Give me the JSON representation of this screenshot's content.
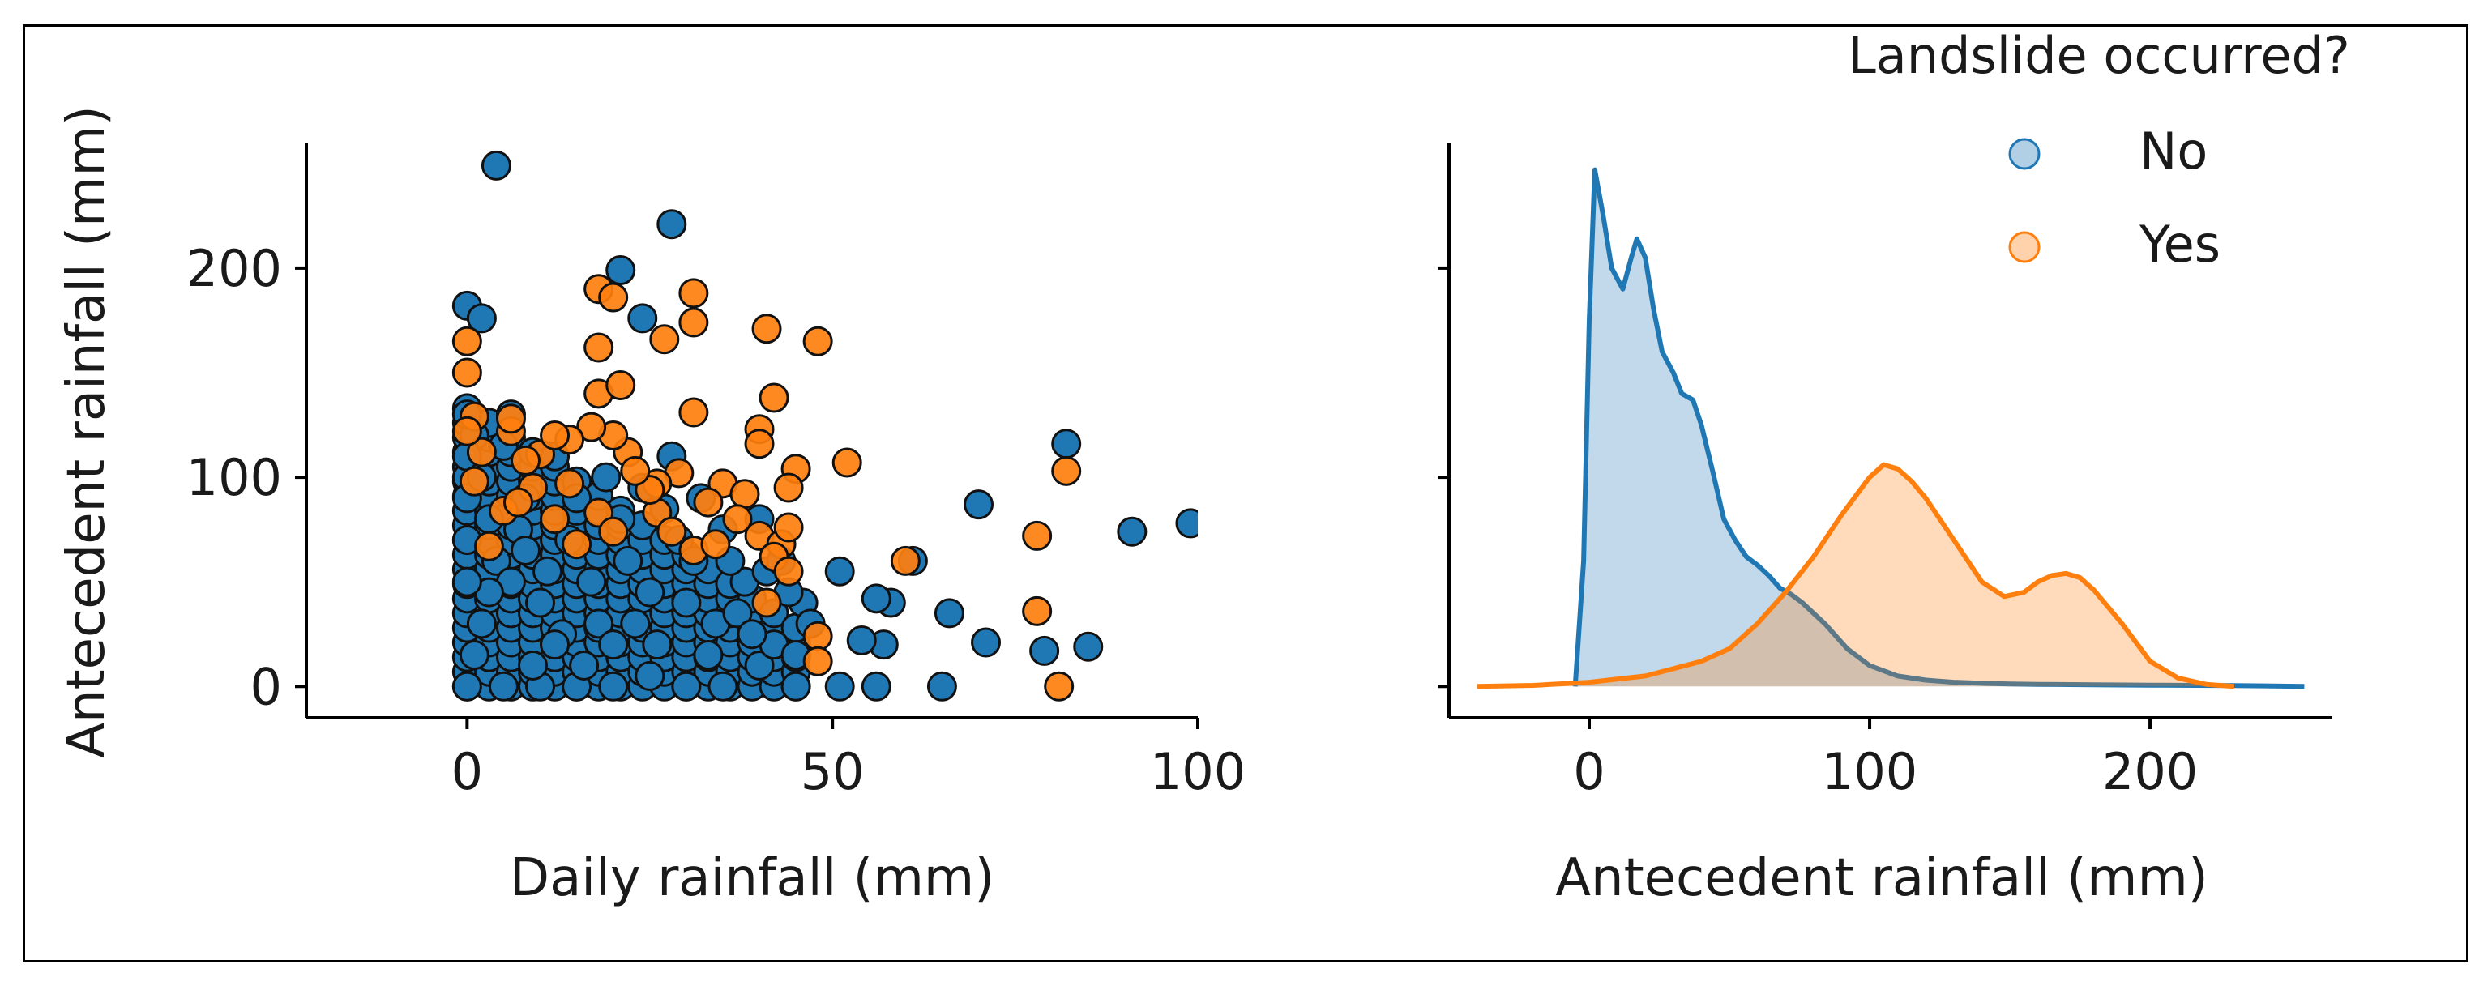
{
  "chart_data": [
    {
      "type": "scatter",
      "xlabel": "Daily rainfall (mm)",
      "ylabel": "Antecedent rainfall (mm)",
      "xlim": [
        -22,
        100
      ],
      "ylim": [
        -15,
        260
      ],
      "xticks": [
        "0",
        "50",
        "100"
      ],
      "xtick_values": [
        0,
        50,
        100
      ],
      "yticks": [
        "0",
        "100",
        "200"
      ],
      "ytick_values": [
        0,
        100,
        200
      ],
      "series": [
        {
          "name": "No",
          "color": "#1f77b4",
          "points": [
            [
              4,
              249
            ],
            [
              28,
              221
            ],
            [
              0,
              182
            ],
            [
              2,
              176
            ],
            [
              21,
              199
            ],
            [
              24,
              176
            ],
            [
              82,
              116
            ],
            [
              70,
              87
            ],
            [
              91,
              74
            ],
            [
              99,
              78
            ],
            [
              66,
              35
            ],
            [
              71,
              21
            ],
            [
              65,
              0
            ],
            [
              79,
              17
            ],
            [
              85,
              19
            ],
            [
              58,
              40
            ],
            [
              56,
              42
            ],
            [
              61,
              60
            ],
            [
              51,
              55
            ],
            [
              57,
              20
            ],
            [
              54,
              22
            ],
            [
              56,
              0
            ],
            [
              51,
              0
            ],
            [
              45,
              0
            ],
            [
              40,
              10
            ],
            [
              35,
              0
            ],
            [
              30,
              0
            ],
            [
              25,
              5
            ],
            [
              20,
              0
            ],
            [
              15,
              0
            ],
            [
              10,
              0
            ],
            [
              5,
              0
            ],
            [
              0,
              0
            ],
            [
              2,
              30
            ],
            [
              4,
              60
            ],
            [
              8,
              90
            ],
            [
              12,
              110
            ],
            [
              6,
              130
            ],
            [
              1,
              120
            ],
            [
              0,
              100
            ],
            [
              3,
              80
            ],
            [
              6,
              50
            ],
            [
              10,
              40
            ],
            [
              14,
              70
            ],
            [
              18,
              30
            ],
            [
              22,
              60
            ],
            [
              26,
              20
            ],
            [
              30,
              40
            ],
            [
              34,
              30
            ],
            [
              38,
              50
            ],
            [
              42,
              20
            ],
            [
              46,
              40
            ],
            [
              9,
              10
            ],
            [
              13,
              25
            ],
            [
              17,
              50
            ],
            [
              21,
              80
            ],
            [
              25,
              45
            ],
            [
              29,
              70
            ],
            [
              33,
              15
            ],
            [
              37,
              35
            ],
            [
              41,
              55
            ],
            [
              45,
              15
            ],
            [
              1,
              15
            ],
            [
              3,
              45
            ],
            [
              7,
              75
            ],
            [
              11,
              55
            ],
            [
              15,
              90
            ],
            [
              19,
              100
            ],
            [
              23,
              30
            ],
            [
              27,
              85
            ],
            [
              31,
              60
            ],
            [
              35,
              75
            ],
            [
              39,
              25
            ],
            [
              43,
              60
            ],
            [
              47,
              30
            ],
            [
              0,
              50
            ],
            [
              0,
              70
            ],
            [
              0,
              90
            ],
            [
              0,
              110
            ],
            [
              0,
              130
            ],
            [
              2,
              100
            ],
            [
              5,
              115
            ],
            [
              8,
              65
            ],
            [
              12,
              20
            ],
            [
              16,
              10
            ],
            [
              20,
              20
            ],
            [
              24,
              95
            ],
            [
              28,
              110
            ],
            [
              32,
              90
            ],
            [
              36,
              60
            ],
            [
              40,
              80
            ],
            [
              44,
              45
            ]
          ]
        },
        {
          "name": "Yes",
          "color": "#ff7f0e",
          "points": [
            [
              18,
              190
            ],
            [
              31,
              188
            ],
            [
              27,
              166
            ],
            [
              31,
              174
            ],
            [
              20,
              186
            ],
            [
              41,
              171
            ],
            [
              48,
              165
            ],
            [
              0,
              165
            ],
            [
              0,
              150
            ],
            [
              18,
              162
            ],
            [
              18,
              140
            ],
            [
              21,
              144
            ],
            [
              42,
              138
            ],
            [
              31,
              131
            ],
            [
              40,
              123
            ],
            [
              40,
              116
            ],
            [
              45,
              104
            ],
            [
              52,
              107
            ],
            [
              29,
              102
            ],
            [
              35,
              97
            ],
            [
              38,
              92
            ],
            [
              44,
              95
            ],
            [
              26,
              97
            ],
            [
              22,
              112
            ],
            [
              20,
              120
            ],
            [
              17,
              124
            ],
            [
              14,
              118
            ],
            [
              10,
              111
            ],
            [
              8,
              108
            ],
            [
              2,
              112
            ],
            [
              6,
              122
            ],
            [
              1,
              129
            ],
            [
              0,
              122
            ],
            [
              26,
              83
            ],
            [
              28,
              74
            ],
            [
              31,
              65
            ],
            [
              34,
              68
            ],
            [
              40,
              72
            ],
            [
              43,
              68
            ],
            [
              44,
              76
            ],
            [
              42,
              62
            ],
            [
              44,
              55
            ],
            [
              41,
              40
            ],
            [
              82,
              103
            ],
            [
              78,
              72
            ],
            [
              78,
              36
            ],
            [
              81,
              0
            ],
            [
              48,
              24
            ],
            [
              48,
              12
            ],
            [
              60,
              60
            ],
            [
              12,
              80
            ],
            [
              18,
              83
            ],
            [
              20,
              74
            ],
            [
              25,
              94
            ],
            [
              3,
              67
            ],
            [
              5,
              84
            ],
            [
              1,
              98
            ],
            [
              14,
              97
            ],
            [
              37,
              80
            ],
            [
              33,
              88
            ],
            [
              23,
              103
            ],
            [
              12,
              120
            ],
            [
              6,
              128
            ],
            [
              9,
              95
            ],
            [
              15,
              68
            ],
            [
              7,
              88
            ]
          ]
        }
      ]
    },
    {
      "type": "area",
      "xlabel": "Antecedent rainfall (mm)",
      "ylabel": "",
      "xlim": [
        -50,
        265
      ],
      "ylim": [
        -15,
        260
      ],
      "xticks": [
        "0",
        "100",
        "200"
      ],
      "xtick_values": [
        0,
        100,
        200
      ],
      "ytick_values": [
        0,
        100,
        200
      ],
      "series": [
        {
          "name": "No",
          "color": "#1f77b4",
          "x": [
            -5,
            -2,
            0,
            2,
            5,
            8,
            12,
            15,
            17,
            20,
            23,
            26,
            30,
            33,
            37,
            40,
            44,
            48,
            52,
            56,
            60,
            64,
            68,
            72,
            76,
            80,
            84,
            88,
            92,
            96,
            100,
            110,
            120,
            130,
            140,
            150,
            160,
            180,
            200,
            230,
            255
          ],
          "y": [
            0,
            60,
            175,
            247,
            225,
            200,
            190,
            205,
            214,
            205,
            180,
            160,
            150,
            140,
            137,
            125,
            103,
            80,
            70,
            62,
            58,
            53,
            47,
            44,
            40,
            35,
            30,
            24,
            18,
            14,
            10,
            5,
            3,
            2,
            1.5,
            1.2,
            1,
            0.8,
            0.6,
            0.4,
            0
          ]
        },
        {
          "name": "Yes",
          "color": "#ff7f0e",
          "x": [
            -40,
            -20,
            0,
            20,
            40,
            50,
            60,
            70,
            80,
            90,
            100,
            105,
            110,
            115,
            120,
            130,
            140,
            148,
            155,
            160,
            165,
            170,
            175,
            180,
            190,
            200,
            210,
            220,
            230
          ],
          "y": [
            0,
            0.5,
            2,
            5,
            12,
            18,
            30,
            45,
            62,
            82,
            100,
            106,
            104,
            98,
            90,
            70,
            50,
            43,
            45,
            50,
            53,
            54,
            52,
            46,
            30,
            12,
            4,
            1,
            0
          ]
        }
      ]
    }
  ],
  "legend": {
    "title": "Landslide occurred?",
    "items": [
      {
        "label": "No",
        "color": "#1f77b4"
      },
      {
        "label": "Yes",
        "color": "#ff7f0e"
      }
    ]
  }
}
